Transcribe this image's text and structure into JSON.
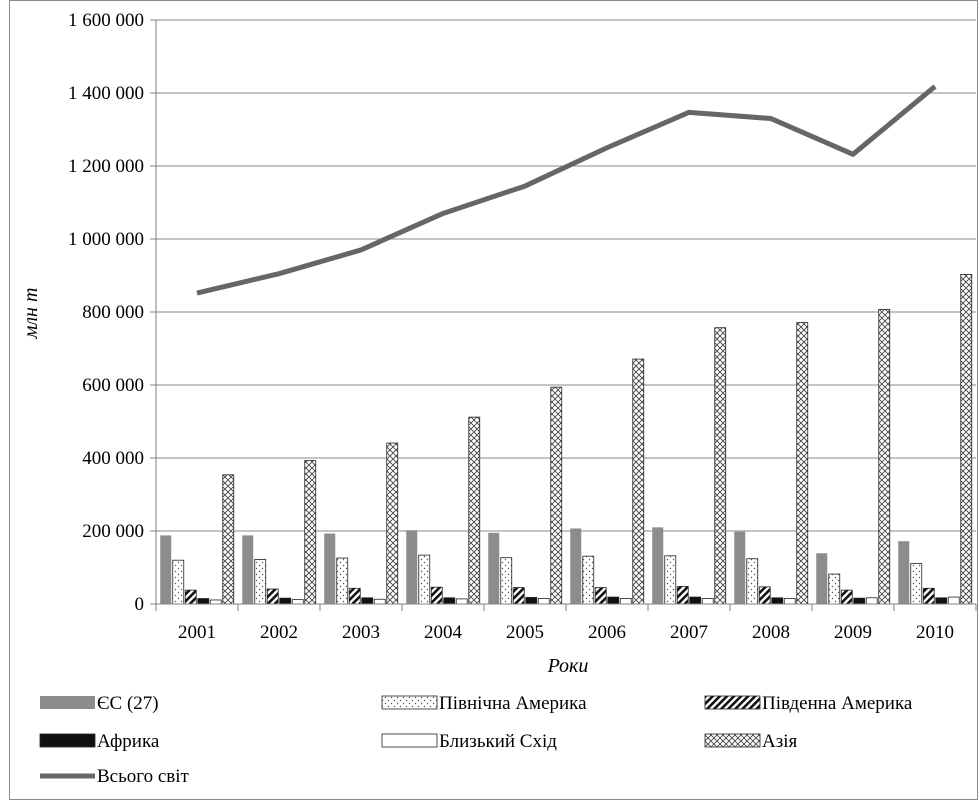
{
  "chart_data": {
    "type": "bar",
    "title": "",
    "xlabel": "Роки",
    "ylabel": "млн т",
    "ylim": [
      0,
      1600000
    ],
    "yticks": [
      "0",
      "200 000",
      "400 000",
      "600 000",
      "800 000",
      "1 000 000",
      "1 200 000",
      "1 400 000",
      "1 600 000"
    ],
    "yticks_values": [
      0,
      200000,
      400000,
      600000,
      800000,
      1000000,
      1200000,
      1400000,
      1600000
    ],
    "categories": [
      "2001",
      "2002",
      "2003",
      "2004",
      "2005",
      "2006",
      "2007",
      "2008",
      "2009",
      "2010"
    ],
    "grid": true,
    "legend_position": "bottom",
    "series": [
      {
        "name": "ЄС (27)",
        "kind": "bar",
        "values": [
          188000,
          188000,
          193000,
          202000,
          195000,
          207000,
          210000,
          198000,
          139000,
          172000
        ]
      },
      {
        "name": "Північна Америка",
        "kind": "bar",
        "values": [
          120000,
          122000,
          126000,
          134000,
          127000,
          131000,
          132000,
          124000,
          82000,
          111000
        ]
      },
      {
        "name": "Південна Америка",
        "kind": "bar",
        "values": [
          38000,
          41000,
          43000,
          46000,
          45000,
          45000,
          48000,
          47000,
          38000,
          43000
        ]
      },
      {
        "name": "Африка",
        "kind": "bar",
        "values": [
          15000,
          16000,
          17000,
          17000,
          18000,
          19000,
          19000,
          17000,
          16000,
          17000
        ]
      },
      {
        "name": "Близький Схід",
        "kind": "bar",
        "values": [
          11000,
          12000,
          13000,
          14000,
          15000,
          15000,
          15000,
          15000,
          17000,
          19000
        ]
      },
      {
        "name": "Азія",
        "kind": "bar",
        "values": [
          354000,
          393000,
          441000,
          512000,
          594000,
          671000,
          757000,
          771000,
          807000,
          903000
        ]
      },
      {
        "name": "Всього світ",
        "kind": "line",
        "values": [
          852000,
          905000,
          970000,
          1070000,
          1145000,
          1250000,
          1347000,
          1330000,
          1232000,
          1418000
        ]
      }
    ],
    "colors": {
      "eu": "#8c8c8c",
      "world_line": "#666666",
      "grid": "#888888",
      "axis": "#808080",
      "africa": "#111111"
    }
  }
}
